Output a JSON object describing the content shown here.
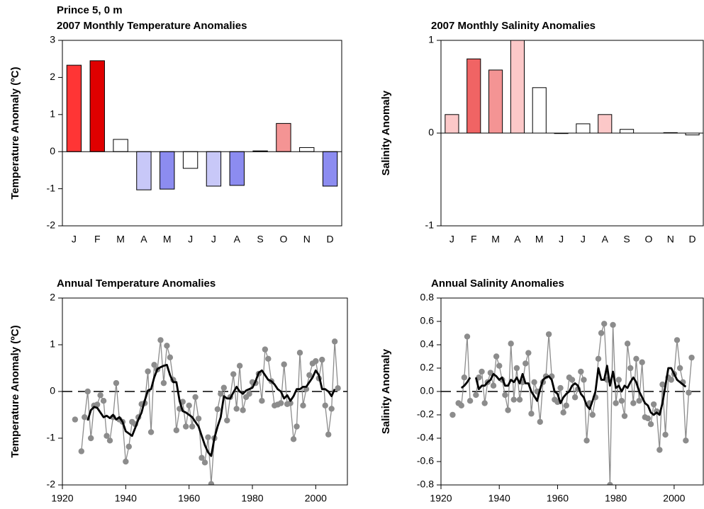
{
  "page_title": "Prince 5, 0 m",
  "chart_data": [
    {
      "type": "bar",
      "title": "2007 Monthly Temperature Anomalies",
      "y_label": "Temperature Anomaly (ºC)",
      "categories": [
        "J",
        "F",
        "M",
        "A",
        "M",
        "J",
        "J",
        "A",
        "S",
        "O",
        "N",
        "D"
      ],
      "values": [
        2.33,
        2.45,
        0.33,
        -1.03,
        -1.01,
        -0.45,
        -0.93,
        -0.91,
        0.02,
        0.76,
        0.11,
        -0.93
      ],
      "colors": [
        "#ff3535",
        "#e00000",
        "#ffffff",
        "#c8c8f8",
        "#8c8cf0",
        "#ffffff",
        "#c8c8f8",
        "#8c8cf0",
        "#ffffff",
        "#f49494",
        "#ffffff",
        "#8c8cf0"
      ],
      "ylim": [
        -2,
        3
      ],
      "yticks": [
        3,
        2,
        1,
        0,
        -1,
        -2
      ]
    },
    {
      "type": "bar",
      "title": "2007 Monthly Salinity Anomalies",
      "y_label": "Salinity Anomaly",
      "categories": [
        "J",
        "F",
        "M",
        "A",
        "M",
        "J",
        "J",
        "A",
        "S",
        "O",
        "N",
        "D"
      ],
      "values": [
        0.2,
        0.8,
        0.68,
        1.0,
        0.49,
        -0.005,
        0.1,
        0.2,
        0.04,
        0,
        0.005,
        -0.02
      ],
      "colors": [
        "#fcc8c8",
        "#f06464",
        "#f49494",
        "#fcc8c8",
        "#ffffff",
        "#ffffff",
        "#ffffff",
        "#fcc8c8",
        "#ffffff",
        "#ffffff",
        "#ffffff",
        "#ffffff"
      ],
      "ylim": [
        -1,
        1
      ],
      "yticks": [
        1,
        0,
        -1
      ]
    },
    {
      "type": "line",
      "title": "Annual Temperature Anomalies",
      "y_label": "Temperature Anomaly (ºC)",
      "x": [
        1924,
        1925,
        1926,
        1927,
        1928,
        1929,
        1930,
        1931,
        1932,
        1933,
        1934,
        1935,
        1936,
        1937,
        1938,
        1939,
        1940,
        1941,
        1942,
        1943,
        1944,
        1945,
        1946,
        1947,
        1948,
        1949,
        1950,
        1951,
        1952,
        1953,
        1954,
        1955,
        1956,
        1957,
        1958,
        1959,
        1960,
        1961,
        1962,
        1963,
        1964,
        1965,
        1966,
        1967,
        1968,
        1969,
        1970,
        1971,
        1972,
        1973,
        1974,
        1975,
        1976,
        1977,
        1978,
        1979,
        1980,
        1981,
        1982,
        1983,
        1984,
        1985,
        1986,
        1987,
        1988,
        1989,
        1990,
        1991,
        1992,
        1993,
        1994,
        1995,
        1996,
        1997,
        1998,
        1999,
        2000,
        2001,
        2002,
        2003,
        2004,
        2005,
        2006,
        2007
      ],
      "series": [
        {
          "color": "#8c8c8c",
          "markers": true,
          "values": [
            -0.6,
            null,
            -1.28,
            -0.55,
            0.0,
            -1.0,
            -0.3,
            -0.28,
            -0.08,
            -0.2,
            -0.95,
            -1.05,
            -0.55,
            0.18,
            -0.6,
            -0.65,
            -1.5,
            -1.18,
            -0.65,
            -0.7,
            -0.55,
            -0.27,
            -0.25,
            0.43,
            -0.87,
            0.57,
            0.47,
            1.1,
            0.18,
            0.98,
            0.73,
            0.25,
            -0.83,
            -0.37,
            -0.22,
            -0.75,
            -0.3,
            -0.75,
            -0.12,
            -0.58,
            -1.42,
            -1.52,
            -0.98,
            -1.98,
            -1.0,
            -0.38,
            -0.05,
            0.08,
            -0.62,
            -0.12,
            0.37,
            -0.37,
            0.55,
            -0.4,
            -0.12,
            -0.05,
            0.2,
            0.18,
            0.38,
            -0.2,
            0.9,
            0.7,
            0.22,
            -0.3,
            -0.28,
            -0.25,
            0.58,
            -0.27,
            -0.25,
            -1.02,
            -0.75,
            0.83,
            -0.3,
            0.05,
            0.35,
            0.6,
            0.65,
            0.28,
            0.68,
            -0.3,
            -0.92,
            -0.37,
            1.07,
            0.07
          ]
        },
        {
          "color": "#000000",
          "markers": false,
          "values": [
            null,
            null,
            null,
            null,
            -0.62,
            -0.4,
            -0.33,
            -0.35,
            -0.45,
            -0.55,
            -0.52,
            -0.57,
            -0.5,
            -0.6,
            -0.55,
            -0.65,
            -0.85,
            -0.9,
            -0.95,
            -0.78,
            -0.6,
            -0.45,
            -0.2,
            0.02,
            0.05,
            0.3,
            0.48,
            0.52,
            0.55,
            0.57,
            0.35,
            0.2,
            0.2,
            -0.2,
            -0.42,
            -0.45,
            -0.5,
            -0.55,
            -0.65,
            -0.75,
            -0.95,
            -1.15,
            -1.3,
            -1.38,
            -1.0,
            -0.75,
            -0.55,
            -0.1,
            -0.15,
            -0.15,
            -0.02,
            0.1,
            0.0,
            -0.05,
            0.02,
            0.05,
            0.08,
            0.22,
            0.4,
            0.45,
            0.35,
            0.25,
            0.22,
            0.15,
            0.05,
            0.0,
            -0.15,
            -0.08,
            -0.2,
            -0.1,
            0.05,
            0.05,
            0.1,
            0.1,
            0.2,
            0.3,
            0.45,
            0.35,
            0.05,
            0.05,
            0.0,
            -0.1,
            0.05,
            null
          ]
        }
      ],
      "xlim": [
        1920,
        2010
      ],
      "xticks": [
        1920,
        1940,
        1960,
        1980,
        2000
      ],
      "ylim": [
        -2,
        2
      ],
      "yticks": [
        2,
        1,
        0,
        -1,
        -2
      ]
    },
    {
      "type": "line",
      "title": "Annual Salinity Anomalies",
      "y_label": "Salinity Anomaly",
      "x": [
        1924,
        1925,
        1926,
        1927,
        1928,
        1929,
        1930,
        1931,
        1932,
        1933,
        1934,
        1935,
        1936,
        1937,
        1938,
        1939,
        1940,
        1941,
        1942,
        1943,
        1944,
        1945,
        1946,
        1947,
        1948,
        1949,
        1950,
        1951,
        1952,
        1953,
        1954,
        1955,
        1956,
        1957,
        1958,
        1959,
        1960,
        1961,
        1962,
        1963,
        1964,
        1965,
        1966,
        1967,
        1968,
        1969,
        1970,
        1971,
        1972,
        1973,
        1974,
        1975,
        1976,
        1977,
        1978,
        1979,
        1980,
        1981,
        1982,
        1983,
        1984,
        1985,
        1986,
        1987,
        1988,
        1989,
        1990,
        1991,
        1992,
        1993,
        1994,
        1995,
        1996,
        1997,
        1998,
        1999,
        2000,
        2001,
        2002,
        2003,
        2004,
        2005,
        2006,
        2007
      ],
      "series": [
        {
          "color": "#8c8c8c",
          "markers": true,
          "values": [
            -0.2,
            null,
            -0.1,
            -0.12,
            0.12,
            0.47,
            -0.08,
            null,
            -0.03,
            0.12,
            0.17,
            -0.1,
            0.08,
            0.16,
            0.05,
            0.3,
            0.22,
            0.1,
            -0.03,
            -0.16,
            0.41,
            -0.07,
            0.2,
            -0.07,
            0.08,
            0.24,
            0.33,
            -0.19,
            0.08,
            0.0,
            -0.26,
            0.08,
            0.13,
            0.49,
            0.13,
            -0.07,
            -0.09,
            0.03,
            -0.18,
            -0.12,
            0.12,
            0.1,
            -0.05,
            0.02,
            0.17,
            0.1,
            -0.42,
            -0.1,
            -0.2,
            -0.05,
            0.28,
            0.5,
            0.58,
            0.1,
            -0.8,
            0.57,
            -0.1,
            0.1,
            -0.08,
            -0.21,
            0.41,
            0.2,
            -0.1,
            0.28,
            -0.08,
            0.25,
            -0.22,
            -0.23,
            -0.28,
            -0.11,
            -0.17,
            -0.5,
            0.06,
            -0.37,
            0.12,
            0.1,
            0.15,
            0.44,
            0.2,
            0.08,
            -0.42,
            -0.01,
            0.29,
            null
          ]
        },
        {
          "color": "#000000",
          "markers": false,
          "values": [
            null,
            null,
            null,
            0.03,
            0.05,
            0.08,
            0.12,
            null,
            0.12,
            0.02,
            0.05,
            0.05,
            0.08,
            0.1,
            0.15,
            0.13,
            0.1,
            0.12,
            0.05,
            0.05,
            0.1,
            0.08,
            0.12,
            0.07,
            0.15,
            0.07,
            0.07,
            0.0,
            -0.04,
            -0.08,
            0.02,
            0.1,
            0.12,
            0.13,
            0.1,
            0.0,
            -0.02,
            -0.1,
            -0.05,
            -0.02,
            0.0,
            0.05,
            0.07,
            0.05,
            -0.02,
            -0.05,
            -0.12,
            -0.15,
            -0.08,
            0.0,
            0.2,
            0.1,
            0.1,
            0.22,
            0.05,
            0.17,
            0.03,
            0.05,
            0.0,
            0.05,
            0.03,
            0.08,
            0.12,
            0.08,
            0.0,
            -0.05,
            -0.1,
            -0.12,
            -0.18,
            -0.2,
            -0.18,
            -0.2,
            -0.1,
            0.05,
            0.2,
            0.2,
            0.15,
            0.1,
            0.08,
            0.06,
            0.04,
            null,
            null,
            null
          ]
        }
      ],
      "xlim": [
        1920,
        2010
      ],
      "xticks": [
        1920,
        1940,
        1960,
        1980,
        2000
      ],
      "ylim": [
        -0.8,
        0.8
      ],
      "yticks": [
        0.8,
        0.6,
        0.4,
        0.2,
        {
          "value": 0,
          "label": "0.0"
        },
        -0.2,
        -0.4,
        -0.6,
        -0.8
      ]
    }
  ]
}
